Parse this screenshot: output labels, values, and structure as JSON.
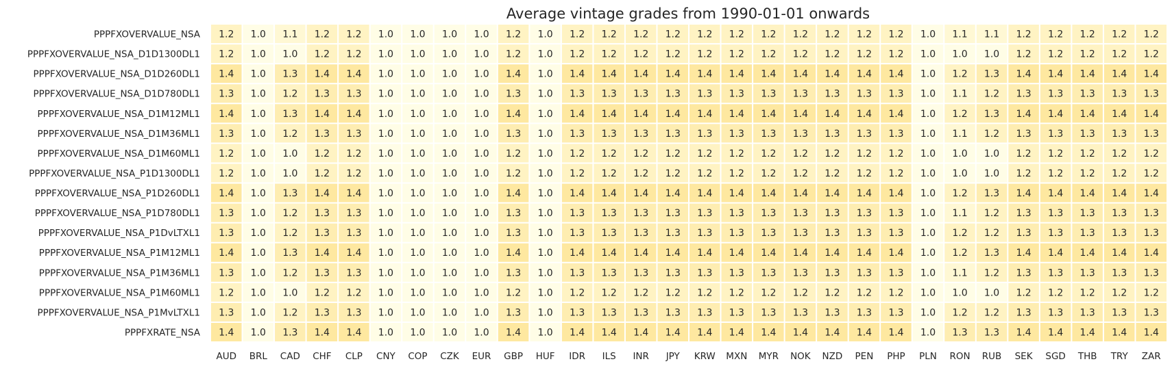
{
  "chart_data": {
    "type": "heatmap",
    "title": "Average vintage grades from 1990-01-01 onwards",
    "xlabel": "",
    "ylabel": "",
    "columns": [
      "AUD",
      "BRL",
      "CAD",
      "CHF",
      "CLP",
      "CNY",
      "COP",
      "CZK",
      "EUR",
      "GBP",
      "HUF",
      "IDR",
      "ILS",
      "INR",
      "JPY",
      "KRW",
      "MXN",
      "MYR",
      "NOK",
      "NZD",
      "PEN",
      "PHP",
      "PLN",
      "RON",
      "RUB",
      "SEK",
      "SGD",
      "THB",
      "TRY",
      "ZAR"
    ],
    "rows": [
      "PPPFXOVERVALUE_NSA",
      "PPPFXOVERVALUE_NSA_D1D1300DL1",
      "PPPFXOVERVALUE_NSA_D1D260DL1",
      "PPPFXOVERVALUE_NSA_D1D780DL1",
      "PPPFXOVERVALUE_NSA_D1M12ML1",
      "PPPFXOVERVALUE_NSA_D1M36ML1",
      "PPPFXOVERVALUE_NSA_D1M60ML1",
      "PPPFXOVERVALUE_NSA_P1D1300DL1",
      "PPPFXOVERVALUE_NSA_P1D260DL1",
      "PPPFXOVERVALUE_NSA_P1D780DL1",
      "PPPFXOVERVALUE_NSA_P1DvLTXL1",
      "PPPFXOVERVALUE_NSA_P1M12ML1",
      "PPPFXOVERVALUE_NSA_P1M36ML1",
      "PPPFXOVERVALUE_NSA_P1M60ML1",
      "PPPFXOVERVALUE_NSA_P1MvLTXL1",
      "PPPFXRATE_NSA"
    ],
    "values": [
      [
        1.2,
        1.0,
        1.1,
        1.2,
        1.2,
        1.0,
        1.0,
        1.0,
        1.0,
        1.2,
        1.0,
        1.2,
        1.2,
        1.2,
        1.2,
        1.2,
        1.2,
        1.2,
        1.2,
        1.2,
        1.2,
        1.2,
        1.0,
        1.1,
        1.1,
        1.2,
        1.2,
        1.2,
        1.2,
        1.2
      ],
      [
        1.2,
        1.0,
        1.0,
        1.2,
        1.2,
        1.0,
        1.0,
        1.0,
        1.0,
        1.2,
        1.0,
        1.2,
        1.2,
        1.2,
        1.2,
        1.2,
        1.2,
        1.2,
        1.2,
        1.2,
        1.2,
        1.2,
        1.0,
        1.0,
        1.0,
        1.2,
        1.2,
        1.2,
        1.2,
        1.2
      ],
      [
        1.4,
        1.0,
        1.3,
        1.4,
        1.4,
        1.0,
        1.0,
        1.0,
        1.0,
        1.4,
        1.0,
        1.4,
        1.4,
        1.4,
        1.4,
        1.4,
        1.4,
        1.4,
        1.4,
        1.4,
        1.4,
        1.4,
        1.0,
        1.2,
        1.3,
        1.4,
        1.4,
        1.4,
        1.4,
        1.4
      ],
      [
        1.3,
        1.0,
        1.2,
        1.3,
        1.3,
        1.0,
        1.0,
        1.0,
        1.0,
        1.3,
        1.0,
        1.3,
        1.3,
        1.3,
        1.3,
        1.3,
        1.3,
        1.3,
        1.3,
        1.3,
        1.3,
        1.3,
        1.0,
        1.1,
        1.2,
        1.3,
        1.3,
        1.3,
        1.3,
        1.3
      ],
      [
        1.4,
        1.0,
        1.3,
        1.4,
        1.4,
        1.0,
        1.0,
        1.0,
        1.0,
        1.4,
        1.0,
        1.4,
        1.4,
        1.4,
        1.4,
        1.4,
        1.4,
        1.4,
        1.4,
        1.4,
        1.4,
        1.4,
        1.0,
        1.2,
        1.3,
        1.4,
        1.4,
        1.4,
        1.4,
        1.4
      ],
      [
        1.3,
        1.0,
        1.2,
        1.3,
        1.3,
        1.0,
        1.0,
        1.0,
        1.0,
        1.3,
        1.0,
        1.3,
        1.3,
        1.3,
        1.3,
        1.3,
        1.3,
        1.3,
        1.3,
        1.3,
        1.3,
        1.3,
        1.0,
        1.1,
        1.2,
        1.3,
        1.3,
        1.3,
        1.3,
        1.3
      ],
      [
        1.2,
        1.0,
        1.0,
        1.2,
        1.2,
        1.0,
        1.0,
        1.0,
        1.0,
        1.2,
        1.0,
        1.2,
        1.2,
        1.2,
        1.2,
        1.2,
        1.2,
        1.2,
        1.2,
        1.2,
        1.2,
        1.2,
        1.0,
        1.0,
        1.0,
        1.2,
        1.2,
        1.2,
        1.2,
        1.2
      ],
      [
        1.2,
        1.0,
        1.0,
        1.2,
        1.2,
        1.0,
        1.0,
        1.0,
        1.0,
        1.2,
        1.0,
        1.2,
        1.2,
        1.2,
        1.2,
        1.2,
        1.2,
        1.2,
        1.2,
        1.2,
        1.2,
        1.2,
        1.0,
        1.0,
        1.0,
        1.2,
        1.2,
        1.2,
        1.2,
        1.2
      ],
      [
        1.4,
        1.0,
        1.3,
        1.4,
        1.4,
        1.0,
        1.0,
        1.0,
        1.0,
        1.4,
        1.0,
        1.4,
        1.4,
        1.4,
        1.4,
        1.4,
        1.4,
        1.4,
        1.4,
        1.4,
        1.4,
        1.4,
        1.0,
        1.2,
        1.3,
        1.4,
        1.4,
        1.4,
        1.4,
        1.4
      ],
      [
        1.3,
        1.0,
        1.2,
        1.3,
        1.3,
        1.0,
        1.0,
        1.0,
        1.0,
        1.3,
        1.0,
        1.3,
        1.3,
        1.3,
        1.3,
        1.3,
        1.3,
        1.3,
        1.3,
        1.3,
        1.3,
        1.3,
        1.0,
        1.1,
        1.2,
        1.3,
        1.3,
        1.3,
        1.3,
        1.3
      ],
      [
        1.3,
        1.0,
        1.2,
        1.3,
        1.3,
        1.0,
        1.0,
        1.0,
        1.0,
        1.3,
        1.0,
        1.3,
        1.3,
        1.3,
        1.3,
        1.3,
        1.3,
        1.3,
        1.3,
        1.3,
        1.3,
        1.3,
        1.0,
        1.2,
        1.2,
        1.3,
        1.3,
        1.3,
        1.3,
        1.3
      ],
      [
        1.4,
        1.0,
        1.3,
        1.4,
        1.4,
        1.0,
        1.0,
        1.0,
        1.0,
        1.4,
        1.0,
        1.4,
        1.4,
        1.4,
        1.4,
        1.4,
        1.4,
        1.4,
        1.4,
        1.4,
        1.4,
        1.4,
        1.0,
        1.2,
        1.3,
        1.4,
        1.4,
        1.4,
        1.4,
        1.4
      ],
      [
        1.3,
        1.0,
        1.2,
        1.3,
        1.3,
        1.0,
        1.0,
        1.0,
        1.0,
        1.3,
        1.0,
        1.3,
        1.3,
        1.3,
        1.3,
        1.3,
        1.3,
        1.3,
        1.3,
        1.3,
        1.3,
        1.3,
        1.0,
        1.1,
        1.2,
        1.3,
        1.3,
        1.3,
        1.3,
        1.3
      ],
      [
        1.2,
        1.0,
        1.0,
        1.2,
        1.2,
        1.0,
        1.0,
        1.0,
        1.0,
        1.2,
        1.0,
        1.2,
        1.2,
        1.2,
        1.2,
        1.2,
        1.2,
        1.2,
        1.2,
        1.2,
        1.2,
        1.2,
        1.0,
        1.0,
        1.0,
        1.2,
        1.2,
        1.2,
        1.2,
        1.2
      ],
      [
        1.3,
        1.0,
        1.2,
        1.3,
        1.3,
        1.0,
        1.0,
        1.0,
        1.0,
        1.3,
        1.0,
        1.3,
        1.3,
        1.3,
        1.3,
        1.3,
        1.3,
        1.3,
        1.3,
        1.3,
        1.3,
        1.3,
        1.0,
        1.2,
        1.2,
        1.3,
        1.3,
        1.3,
        1.3,
        1.3
      ],
      [
        1.4,
        1.0,
        1.3,
        1.4,
        1.4,
        1.0,
        1.0,
        1.0,
        1.0,
        1.4,
        1.0,
        1.4,
        1.4,
        1.4,
        1.4,
        1.4,
        1.4,
        1.4,
        1.4,
        1.4,
        1.4,
        1.4,
        1.0,
        1.3,
        1.3,
        1.4,
        1.4,
        1.4,
        1.4,
        1.4
      ]
    ],
    "value_format": "one-decimal",
    "colorscale": {
      "low": "#fffde6",
      "high": "#fee8a0",
      "min": 1.0,
      "max": 1.4
    },
    "cell_border_color": "#ffffff",
    "grid": false,
    "legend": "none"
  }
}
